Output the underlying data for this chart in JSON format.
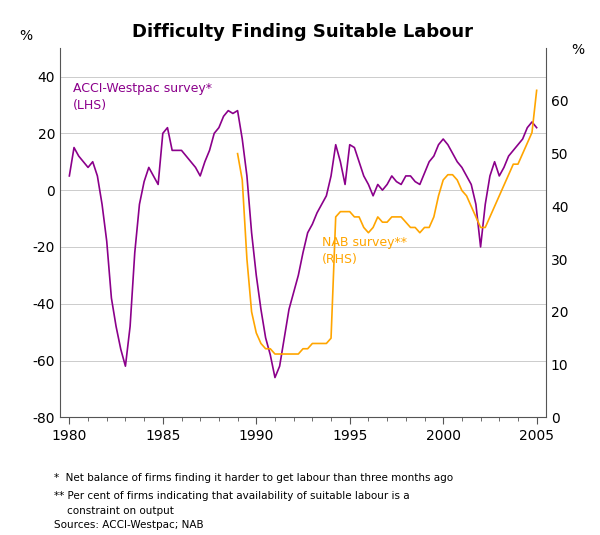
{
  "title": "Difficulty Finding Suitable Labour",
  "acci_color": "#8B008B",
  "nab_color": "#FFA500",
  "lhs_label": "ACCI-Westpac survey*\n(LHS)",
  "rhs_label": "NAB survey**\n(RHS)",
  "ylabel_left": "%",
  "ylabel_right": "%",
  "ylim_left": [
    -80,
    50
  ],
  "ylim_right": [
    0,
    70
  ],
  "yticks_left": [
    -80,
    -60,
    -40,
    -20,
    0,
    20,
    40
  ],
  "yticks_right": [
    0,
    10,
    20,
    30,
    40,
    50,
    60
  ],
  "xlim": [
    1979.5,
    2005.5
  ],
  "xticks": [
    1980,
    1985,
    1990,
    1995,
    2000,
    2005
  ],
  "footnote1": "*  Net balance of firms finding it harder to get labour than three months ago",
  "footnote2": "** Per cent of firms indicating that availability of suitable labour is a",
  "footnote3": "    constraint on output",
  "footnote4": "Sources: ACCI-Westpac; NAB",
  "acci_x": [
    1980.0,
    1980.25,
    1980.5,
    1980.75,
    1981.0,
    1981.25,
    1981.5,
    1981.75,
    1982.0,
    1982.25,
    1982.5,
    1982.75,
    1983.0,
    1983.25,
    1983.5,
    1983.75,
    1984.0,
    1984.25,
    1984.5,
    1984.75,
    1985.0,
    1985.25,
    1985.5,
    1985.75,
    1986.0,
    1986.25,
    1986.5,
    1986.75,
    1987.0,
    1987.25,
    1987.5,
    1987.75,
    1988.0,
    1988.25,
    1988.5,
    1988.75,
    1989.0,
    1989.25,
    1989.5,
    1989.75,
    1990.0,
    1990.25,
    1990.5,
    1990.75,
    1991.0,
    1991.25,
    1991.5,
    1991.75,
    1992.0,
    1992.25,
    1992.5,
    1992.75,
    1993.0,
    1993.25,
    1993.5,
    1993.75,
    1994.0,
    1994.25,
    1994.5,
    1994.75,
    1995.0,
    1995.25,
    1995.5,
    1995.75,
    1996.0,
    1996.25,
    1996.5,
    1996.75,
    1997.0,
    1997.25,
    1997.5,
    1997.75,
    1998.0,
    1998.25,
    1998.5,
    1998.75,
    1999.0,
    1999.25,
    1999.5,
    1999.75,
    2000.0,
    2000.25,
    2000.5,
    2000.75,
    2001.0,
    2001.25,
    2001.5,
    2001.75,
    2002.0,
    2002.25,
    2002.5,
    2002.75,
    2003.0,
    2003.25,
    2003.5,
    2003.75,
    2004.0,
    2004.25,
    2004.5,
    2004.75,
    2005.0
  ],
  "acci_y": [
    5,
    15,
    12,
    10,
    8,
    10,
    5,
    -5,
    -18,
    -38,
    -48,
    -56,
    -62,
    -48,
    -22,
    -5,
    3,
    8,
    5,
    2,
    20,
    22,
    14,
    14,
    14,
    12,
    10,
    8,
    5,
    10,
    14,
    20,
    22,
    26,
    28,
    27,
    28,
    18,
    5,
    -15,
    -30,
    -42,
    -52,
    -58,
    -66,
    -62,
    -52,
    -42,
    -36,
    -30,
    -22,
    -15,
    -12,
    -8,
    -5,
    -2,
    5,
    16,
    10,
    2,
    16,
    15,
    10,
    5,
    2,
    -2,
    2,
    0,
    2,
    5,
    3,
    2,
    5,
    5,
    3,
    2,
    6,
    10,
    12,
    16,
    18,
    16,
    13,
    10,
    8,
    5,
    2,
    -5,
    -20,
    -5,
    5,
    10,
    5,
    8,
    12,
    14,
    16,
    18,
    22,
    24,
    22
  ],
  "nab_x": [
    1989.0,
    1989.25,
    1989.5,
    1989.75,
    1990.0,
    1990.25,
    1990.5,
    1990.75,
    1991.0,
    1991.25,
    1991.5,
    1991.75,
    1992.0,
    1992.25,
    1992.5,
    1992.75,
    1993.0,
    1993.25,
    1993.5,
    1993.75,
    1994.0,
    1994.25,
    1994.5,
    1994.75,
    1995.0,
    1995.25,
    1995.5,
    1995.75,
    1996.0,
    1996.25,
    1996.5,
    1996.75,
    1997.0,
    1997.25,
    1997.5,
    1997.75,
    1998.0,
    1998.25,
    1998.5,
    1998.75,
    1999.0,
    1999.25,
    1999.5,
    1999.75,
    2000.0,
    2000.25,
    2000.5,
    2000.75,
    2001.0,
    2001.25,
    2001.5,
    2001.75,
    2002.0,
    2002.25,
    2002.5,
    2002.75,
    2003.0,
    2003.25,
    2003.5,
    2003.75,
    2004.0,
    2004.25,
    2004.5,
    2004.75,
    2005.0
  ],
  "nab_y": [
    50,
    45,
    30,
    20,
    16,
    14,
    13,
    13,
    12,
    12,
    12,
    12,
    12,
    12,
    13,
    13,
    14,
    14,
    14,
    14,
    15,
    38,
    39,
    39,
    39,
    38,
    38,
    36,
    35,
    36,
    38,
    37,
    37,
    38,
    38,
    38,
    37,
    36,
    36,
    35,
    36,
    36,
    38,
    42,
    45,
    46,
    46,
    45,
    43,
    42,
    40,
    38,
    36,
    36,
    38,
    40,
    42,
    44,
    46,
    48,
    48,
    50,
    52,
    54,
    62
  ]
}
